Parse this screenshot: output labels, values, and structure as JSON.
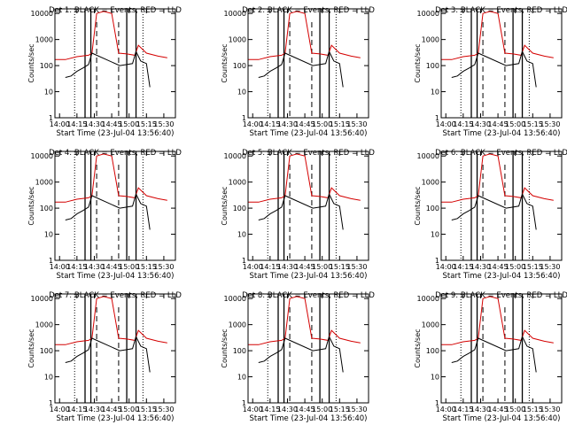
{
  "ylabel": "Counts/sec",
  "xlabel": "Start Time (23-Jul-04 13:56:40)",
  "x_ticks": [
    "14:00",
    "14:15",
    "14:30",
    "14:45",
    "15:00",
    "15:15",
    "15:30"
  ],
  "y_ticks": [
    "1",
    "10",
    "100",
    "1000",
    "10000"
  ],
  "colors": {
    "events": "#000000",
    "lld": "#d40000",
    "frame": "#000000"
  },
  "chart_data": [
    {
      "type": "line",
      "title": "Det 1: BLACK = Events, RED = LLD",
      "xlabel": "Start Time (23-Jul-04 13:56:40)",
      "ylabel": "Counts/sec",
      "y_scale": "log",
      "ylim": [
        1,
        15000
      ],
      "xlim": [
        "13:56",
        "15:40"
      ],
      "grid": false,
      "vlines": {
        "dotted": [
          "14:13",
          "15:12"
        ],
        "solid": [
          "14:22",
          "14:27",
          "14:58",
          "15:06"
        ],
        "dashed": [
          "14:32",
          "14:51"
        ]
      },
      "series": [
        {
          "name": "Events",
          "color": "#000000",
          "x": [
            "14:05",
            "14:10",
            "14:15",
            "14:20",
            "14:25",
            "14:28",
            "14:52",
            "14:58",
            "15:03",
            "15:06",
            "15:10",
            "15:15",
            "15:18"
          ],
          "y": [
            35,
            40,
            60,
            80,
            110,
            300,
            100,
            110,
            120,
            350,
            150,
            120,
            15
          ]
        },
        {
          "name": "LLD",
          "color": "#d40000",
          "x": [
            "13:56",
            "14:05",
            "14:15",
            "14:25",
            "14:28",
            "14:32",
            "14:38",
            "14:45",
            "14:51",
            "14:58",
            "15:05",
            "15:08",
            "15:15",
            "15:25",
            "15:33"
          ],
          "y": [
            170,
            170,
            220,
            250,
            300,
            10000,
            12000,
            10000,
            300,
            280,
            250,
            600,
            300,
            230,
            200
          ]
        }
      ]
    },
    {
      "type": "line",
      "title": "Det 2: BLACK = Events, RED = LLD",
      "xlabel": "Start Time (23-Jul-04 13:56:40)",
      "ylabel": "Counts/sec",
      "y_scale": "log",
      "ylim": [
        1,
        15000
      ],
      "xlim": [
        "13:56",
        "15:40"
      ],
      "grid": false,
      "vlines": {
        "dotted": [
          "14:13",
          "15:12"
        ],
        "solid": [
          "14:22",
          "14:27",
          "14:58",
          "15:06"
        ],
        "dashed": [
          "14:32",
          "14:51"
        ]
      },
      "series": [
        {
          "name": "Events",
          "color": "#000000",
          "x": [
            "14:05",
            "14:10",
            "14:15",
            "14:20",
            "14:25",
            "14:28",
            "14:52",
            "14:58",
            "15:03",
            "15:06",
            "15:10",
            "15:15",
            "15:18"
          ],
          "y": [
            35,
            40,
            60,
            80,
            110,
            300,
            100,
            110,
            120,
            350,
            150,
            120,
            15
          ]
        },
        {
          "name": "LLD",
          "color": "#d40000",
          "x": [
            "13:56",
            "14:05",
            "14:15",
            "14:25",
            "14:28",
            "14:32",
            "14:38",
            "14:45",
            "14:51",
            "14:58",
            "15:05",
            "15:08",
            "15:15",
            "15:25",
            "15:33"
          ],
          "y": [
            170,
            170,
            220,
            250,
            300,
            10000,
            12000,
            10000,
            300,
            280,
            250,
            600,
            300,
            230,
            200
          ]
        }
      ]
    },
    {
      "type": "line",
      "title": "Det 3: BLACK = Events, RED = LLD",
      "xlabel": "Start Time (23-Jul-04 13:56:40)",
      "ylabel": "Counts/sec",
      "y_scale": "log",
      "ylim": [
        1,
        15000
      ],
      "xlim": [
        "13:56",
        "15:40"
      ],
      "grid": false,
      "vlines": {
        "dotted": [
          "14:13",
          "15:12"
        ],
        "solid": [
          "14:22",
          "14:27",
          "14:58",
          "15:06"
        ],
        "dashed": [
          "14:32",
          "14:51"
        ]
      },
      "series": [
        {
          "name": "Events",
          "color": "#000000",
          "x": [
            "14:05",
            "14:10",
            "14:15",
            "14:20",
            "14:25",
            "14:28",
            "14:52",
            "14:58",
            "15:03",
            "15:06",
            "15:10",
            "15:15",
            "15:18"
          ],
          "y": [
            35,
            40,
            60,
            80,
            110,
            300,
            100,
            110,
            120,
            350,
            150,
            120,
            15
          ]
        },
        {
          "name": "LLD",
          "color": "#d40000",
          "x": [
            "13:56",
            "14:05",
            "14:15",
            "14:25",
            "14:28",
            "14:32",
            "14:38",
            "14:45",
            "14:51",
            "14:58",
            "15:05",
            "15:08",
            "15:15",
            "15:25",
            "15:33"
          ],
          "y": [
            170,
            170,
            220,
            250,
            300,
            10000,
            12000,
            10000,
            300,
            280,
            250,
            600,
            300,
            230,
            200
          ]
        }
      ]
    },
    {
      "type": "line",
      "title": "Det 4: BLACK = Events, RED = LLD",
      "xlabel": "Start Time (23-Jul-04 13:56:40)",
      "ylabel": "Counts/sec",
      "y_scale": "log",
      "ylim": [
        1,
        15000
      ],
      "xlim": [
        "13:56",
        "15:40"
      ],
      "grid": false,
      "vlines": {
        "dotted": [
          "14:13",
          "15:12"
        ],
        "solid": [
          "14:22",
          "14:27",
          "14:58",
          "15:06"
        ],
        "dashed": [
          "14:32",
          "14:51"
        ]
      },
      "series": [
        {
          "name": "Events",
          "color": "#000000",
          "x": [
            "14:05",
            "14:10",
            "14:15",
            "14:20",
            "14:25",
            "14:28",
            "14:52",
            "14:58",
            "15:03",
            "15:06",
            "15:10",
            "15:15",
            "15:18"
          ],
          "y": [
            35,
            40,
            60,
            80,
            110,
            300,
            100,
            110,
            120,
            350,
            150,
            120,
            15
          ]
        },
        {
          "name": "LLD",
          "color": "#d40000",
          "x": [
            "13:56",
            "14:05",
            "14:15",
            "14:25",
            "14:28",
            "14:32",
            "14:38",
            "14:45",
            "14:51",
            "14:58",
            "15:05",
            "15:08",
            "15:15",
            "15:25",
            "15:33"
          ],
          "y": [
            170,
            170,
            220,
            250,
            300,
            10000,
            12000,
            10000,
            300,
            280,
            250,
            600,
            300,
            230,
            200
          ]
        }
      ]
    },
    {
      "type": "line",
      "title": "Det 5: BLACK = Events, RED = LLD",
      "xlabel": "Start Time (23-Jul-04 13:56:40)",
      "ylabel": "Counts/sec",
      "y_scale": "log",
      "ylim": [
        1,
        15000
      ],
      "xlim": [
        "13:56",
        "15:40"
      ],
      "grid": false,
      "vlines": {
        "dotted": [
          "14:13",
          "15:12"
        ],
        "solid": [
          "14:22",
          "14:27",
          "14:58",
          "15:06"
        ],
        "dashed": [
          "14:32",
          "14:51"
        ]
      },
      "series": [
        {
          "name": "Events",
          "color": "#000000",
          "x": [
            "14:05",
            "14:10",
            "14:15",
            "14:20",
            "14:25",
            "14:28",
            "14:52",
            "14:58",
            "15:03",
            "15:06",
            "15:10",
            "15:15",
            "15:18"
          ],
          "y": [
            35,
            40,
            60,
            80,
            110,
            300,
            100,
            110,
            120,
            350,
            150,
            120,
            15
          ]
        },
        {
          "name": "LLD",
          "color": "#d40000",
          "x": [
            "13:56",
            "14:05",
            "14:15",
            "14:25",
            "14:28",
            "14:32",
            "14:38",
            "14:45",
            "14:51",
            "14:58",
            "15:05",
            "15:08",
            "15:15",
            "15:25",
            "15:33"
          ],
          "y": [
            170,
            170,
            220,
            250,
            300,
            10000,
            12000,
            10000,
            300,
            280,
            250,
            600,
            300,
            230,
            200
          ]
        }
      ]
    },
    {
      "type": "line",
      "title": "Det 6: BLACK = Events, RED = LLD",
      "xlabel": "Start Time (23-Jul-04 13:56:40)",
      "ylabel": "Counts/sec",
      "y_scale": "log",
      "ylim": [
        1,
        15000
      ],
      "xlim": [
        "13:56",
        "15:40"
      ],
      "grid": false,
      "vlines": {
        "dotted": [
          "14:13",
          "15:12"
        ],
        "solid": [
          "14:22",
          "14:27",
          "14:58",
          "15:06"
        ],
        "dashed": [
          "14:32",
          "14:51"
        ]
      },
      "series": [
        {
          "name": "Events",
          "color": "#000000",
          "x": [
            "14:05",
            "14:10",
            "14:15",
            "14:20",
            "14:25",
            "14:28",
            "14:52",
            "14:58",
            "15:03",
            "15:06",
            "15:10",
            "15:15",
            "15:18"
          ],
          "y": [
            35,
            40,
            60,
            80,
            110,
            300,
            100,
            110,
            120,
            350,
            150,
            120,
            15
          ]
        },
        {
          "name": "LLD",
          "color": "#d40000",
          "x": [
            "13:56",
            "14:05",
            "14:15",
            "14:25",
            "14:28",
            "14:32",
            "14:38",
            "14:45",
            "14:51",
            "14:58",
            "15:05",
            "15:08",
            "15:15",
            "15:25",
            "15:33"
          ],
          "y": [
            170,
            170,
            220,
            250,
            300,
            10000,
            12000,
            10000,
            300,
            280,
            250,
            600,
            300,
            230,
            200
          ]
        }
      ]
    },
    {
      "type": "line",
      "title": "Det 7: BLACK = Events, RED = LLD",
      "xlabel": "Start Time (23-Jul-04 13:56:40)",
      "ylabel": "Counts/sec",
      "y_scale": "log",
      "ylim": [
        1,
        15000
      ],
      "xlim": [
        "13:56",
        "15:40"
      ],
      "grid": false,
      "vlines": {
        "dotted": [
          "14:13",
          "15:12"
        ],
        "solid": [
          "14:22",
          "14:27",
          "14:58",
          "15:06"
        ],
        "dashed": [
          "14:32",
          "14:51"
        ]
      },
      "series": [
        {
          "name": "Events",
          "color": "#000000",
          "x": [
            "14:05",
            "14:10",
            "14:15",
            "14:20",
            "14:25",
            "14:28",
            "14:52",
            "14:58",
            "15:03",
            "15:06",
            "15:10",
            "15:15",
            "15:18"
          ],
          "y": [
            35,
            40,
            60,
            80,
            110,
            300,
            100,
            110,
            120,
            350,
            150,
            120,
            15
          ]
        },
        {
          "name": "LLD",
          "color": "#d40000",
          "x": [
            "13:56",
            "14:05",
            "14:15",
            "14:25",
            "14:28",
            "14:32",
            "14:38",
            "14:45",
            "14:51",
            "14:58",
            "15:05",
            "15:08",
            "15:15",
            "15:25",
            "15:33"
          ],
          "y": [
            170,
            170,
            220,
            250,
            300,
            10000,
            12000,
            10000,
            300,
            280,
            250,
            600,
            300,
            230,
            200
          ]
        }
      ]
    },
    {
      "type": "line",
      "title": "Det 8: BLACK = Events, RED = LLD",
      "xlabel": "Start Time (23-Jul-04 13:56:40)",
      "ylabel": "Counts/sec",
      "y_scale": "log",
      "ylim": [
        1,
        15000
      ],
      "xlim": [
        "13:56",
        "15:40"
      ],
      "grid": false,
      "vlines": {
        "dotted": [
          "14:13",
          "15:12"
        ],
        "solid": [
          "14:22",
          "14:27",
          "14:58",
          "15:06"
        ],
        "dashed": [
          "14:32",
          "14:51"
        ]
      },
      "series": [
        {
          "name": "Events",
          "color": "#000000",
          "x": [
            "14:05",
            "14:10",
            "14:15",
            "14:20",
            "14:25",
            "14:28",
            "14:52",
            "14:58",
            "15:03",
            "15:06",
            "15:10",
            "15:15",
            "15:18"
          ],
          "y": [
            35,
            40,
            60,
            80,
            110,
            300,
            100,
            110,
            120,
            350,
            150,
            120,
            15
          ]
        },
        {
          "name": "LLD",
          "color": "#d40000",
          "x": [
            "13:56",
            "14:05",
            "14:15",
            "14:25",
            "14:28",
            "14:32",
            "14:38",
            "14:45",
            "14:51",
            "14:58",
            "15:05",
            "15:08",
            "15:15",
            "15:25",
            "15:33"
          ],
          "y": [
            170,
            170,
            220,
            250,
            300,
            10000,
            12000,
            10000,
            300,
            280,
            250,
            600,
            300,
            230,
            200
          ]
        }
      ]
    },
    {
      "type": "line",
      "title": "Det 9: BLACK = Events, RED = LLD",
      "xlabel": "Start Time (23-Jul-04 13:56:40)",
      "ylabel": "Counts/sec",
      "y_scale": "log",
      "ylim": [
        1,
        15000
      ],
      "xlim": [
        "13:56",
        "15:40"
      ],
      "grid": false,
      "vlines": {
        "dotted": [
          "14:13",
          "15:12"
        ],
        "solid": [
          "14:22",
          "14:27",
          "14:58",
          "15:06"
        ],
        "dashed": [
          "14:32",
          "14:51"
        ]
      },
      "series": [
        {
          "name": "Events",
          "color": "#000000",
          "x": [
            "14:05",
            "14:10",
            "14:15",
            "14:20",
            "14:25",
            "14:28",
            "14:52",
            "14:58",
            "15:03",
            "15:06",
            "15:10",
            "15:15",
            "15:18"
          ],
          "y": [
            35,
            40,
            60,
            80,
            110,
            300,
            100,
            110,
            120,
            350,
            150,
            120,
            15
          ]
        },
        {
          "name": "LLD",
          "color": "#d40000",
          "x": [
            "13:56",
            "14:05",
            "14:15",
            "14:25",
            "14:28",
            "14:32",
            "14:38",
            "14:45",
            "14:51",
            "14:58",
            "15:05",
            "15:08",
            "15:15",
            "15:25",
            "15:33"
          ],
          "y": [
            170,
            170,
            220,
            250,
            300,
            10000,
            12000,
            10000,
            300,
            280,
            250,
            600,
            300,
            230,
            200
          ]
        }
      ]
    }
  ]
}
